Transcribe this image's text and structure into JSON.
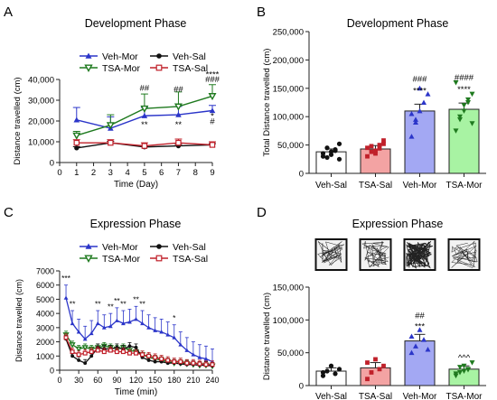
{
  "panels": [
    {
      "letter": "A",
      "title": "Development Phase"
    },
    {
      "letter": "B",
      "title": "Development Phase"
    },
    {
      "letter": "C",
      "title": "Expression Phase"
    },
    {
      "letter": "D",
      "title": "Expression Phase"
    }
  ],
  "colors": {
    "veh_mor": "#2b35c9",
    "tsa_mor": "#1f7a1f",
    "veh_sal": "#111111",
    "tsa_sal": "#c0202a",
    "bar_veh_sal": "#ffffff",
    "bar_tsa_sal": "#f3a3a3",
    "bar_veh_mor": "#a3a8f3",
    "bar_tsa_mor": "#a8f3a3"
  },
  "chart_data": [
    {
      "type": "line",
      "title": "Development Phase",
      "xlabel": "Time (Day)",
      "ylabel": "Distance travelled (cm)",
      "x": [
        1,
        3,
        5,
        7,
        9
      ],
      "xlim": [
        0,
        9
      ],
      "ylim": [
        0,
        40000
      ],
      "xticks": [
        "0",
        "1",
        "2",
        "3",
        "4",
        "5",
        "6",
        "7",
        "8",
        "9"
      ],
      "yticks": [
        "0",
        "10,000",
        "20,000",
        "30,000",
        "40,000"
      ],
      "legend": [
        "Veh-Mor",
        "TSA-Mor",
        "Veh-Sal",
        "TSA-Sal"
      ],
      "legend_position": "top",
      "series": [
        {
          "name": "Veh-Mor",
          "values": [
            20500,
            16500,
            22500,
            23000,
            25000
          ],
          "err": [
            6000,
            5500,
            4000,
            4000,
            2500
          ]
        },
        {
          "name": "TSA-Mor",
          "values": [
            13000,
            18000,
            26000,
            27000,
            32000
          ],
          "err": [
            2000,
            5000,
            7000,
            7000,
            5500
          ]
        },
        {
          "name": "Veh-Sal",
          "values": [
            7000,
            9500,
            7500,
            8000,
            8500
          ],
          "err": [
            600,
            700,
            500,
            700,
            600
          ]
        },
        {
          "name": "TSA-Sal",
          "values": [
            9500,
            9500,
            8000,
            9500,
            8500
          ],
          "err": [
            1500,
            1500,
            1500,
            1800,
            1500
          ]
        }
      ],
      "annotations": [
        {
          "x": 5,
          "text": "##"
        },
        {
          "x": 5,
          "text": "**"
        },
        {
          "x": 7,
          "text": "##"
        },
        {
          "x": 7,
          "text": "**"
        },
        {
          "x": 9,
          "text": "****"
        },
        {
          "x": 9,
          "text": "###"
        },
        {
          "x": 9,
          "text": "*"
        },
        {
          "x": 9,
          "text": "#"
        }
      ]
    },
    {
      "type": "bar",
      "title": "Development Phase",
      "xlabel": "",
      "ylabel": "Total Distance travelled (cm)",
      "categories": [
        "Veh-Sal",
        "TSA-Sal",
        "Veh-Mor",
        "TSA-Mor"
      ],
      "values": [
        38000,
        43000,
        110000,
        113000
      ],
      "err": [
        5000,
        6000,
        12000,
        11000
      ],
      "ylim": [
        0,
        250000
      ],
      "yticks": [
        "0",
        "50,000",
        "100,000",
        "150,000",
        "200,000",
        "250,000"
      ],
      "annotations": [
        {
          "category": "Veh-Mor",
          "lines": [
            "###",
            "****"
          ]
        },
        {
          "category": "TSA-Mor",
          "lines": [
            "####",
            "****"
          ]
        }
      ],
      "points": [
        [
          30000,
          45000,
          38000,
          40000,
          52000,
          35000,
          28000,
          33000,
          42000,
          25000
        ],
        [
          30000,
          48000,
          40000,
          50000,
          58000,
          45000,
          38000,
          35000,
          44000,
          52000
        ],
        [
          65000,
          90000,
          110000,
          125000,
          140000,
          105000,
          95000,
          150000
        ],
        [
          75000,
          95000,
          110000,
          125000,
          140000,
          160000,
          100000,
          120000,
          130000,
          88000
        ]
      ]
    },
    {
      "type": "line",
      "title": "Expression Phase",
      "xlabel": "Time (min)",
      "ylabel": "Distance travelled (cm)",
      "x": [
        10,
        20,
        30,
        40,
        50,
        60,
        70,
        80,
        90,
        100,
        110,
        120,
        130,
        140,
        150,
        160,
        170,
        180,
        190,
        200,
        210,
        220,
        230,
        240
      ],
      "xlim": [
        0,
        240
      ],
      "ylim": [
        0,
        7000
      ],
      "xticks": [
        "0",
        "30",
        "60",
        "90",
        "120",
        "150",
        "180",
        "210",
        "240"
      ],
      "yticks": [
        "0",
        "1000",
        "2000",
        "3000",
        "4000",
        "5000",
        "6000",
        "7000"
      ],
      "legend": [
        "Veh-Mor",
        "TSA-Mor",
        "Veh-Sal",
        "TSA-Sal"
      ],
      "legend_position": "top",
      "series": [
        {
          "name": "Veh-Mor",
          "values": [
            5100,
            3300,
            2700,
            2200,
            2600,
            3300,
            3000,
            3100,
            3500,
            3300,
            3400,
            3600,
            3300,
            3000,
            2800,
            2700,
            2500,
            2300,
            1800,
            1400,
            1100,
            900,
            800,
            600
          ]
        },
        {
          "name": "TSA-Mor",
          "values": [
            2500,
            1800,
            1500,
            1600,
            1500,
            1600,
            1700,
            1600,
            1500,
            1600,
            1400,
            1300,
            1100,
            900,
            800,
            700,
            600,
            500,
            500,
            450,
            400,
            350,
            350,
            300
          ]
        },
        {
          "name": "Veh-Sal",
          "values": [
            2200,
            1000,
            700,
            500,
            1000,
            1600,
            1500,
            1500,
            1600,
            1500,
            1700,
            1600,
            900,
            700,
            600,
            600,
            500,
            500,
            450,
            400,
            400,
            350,
            350,
            300
          ]
        },
        {
          "name": "TSA-Sal",
          "values": [
            2300,
            1300,
            1100,
            1200,
            1300,
            1400,
            1300,
            1400,
            1300,
            1300,
            1200,
            1200,
            1100,
            1000,
            900,
            800,
            700,
            600,
            600,
            500,
            500,
            450,
            400,
            400
          ]
        }
      ],
      "annotations": [
        "***",
        "**",
        "**",
        "**",
        "**",
        "**",
        "**",
        "**",
        "*"
      ]
    },
    {
      "type": "bar",
      "title": "Expression Phase",
      "xlabel": "",
      "ylabel": "Distance travelled (cm)",
      "categories": [
        "Veh-Sal",
        "TSA-Sal",
        "Veh-Mor",
        "TSA-Mor"
      ],
      "values": [
        22000,
        27000,
        68000,
        25000
      ],
      "err": [
        5000,
        8000,
        10000,
        5000
      ],
      "ylim": [
        0,
        150000
      ],
      "yticks": [
        "0",
        "50,000",
        "100,000",
        "150,000"
      ],
      "annotations": [
        {
          "category": "Veh-Mor",
          "lines": [
            "##",
            "***"
          ]
        },
        {
          "category": "TSA-Mor",
          "lines": [
            "^^^"
          ]
        }
      ],
      "points": [
        [
          15000,
          22000,
          30000,
          18000,
          25000,
          20000
        ],
        [
          10000,
          20000,
          40000,
          25000,
          30000,
          35000
        ],
        [
          50000,
          60000,
          85000,
          70000,
          55000,
          75000
        ],
        [
          15000,
          20000,
          30000,
          25000,
          35000,
          18000,
          28000,
          22000,
          24000
        ]
      ],
      "track_images": [
        "Veh-Sal",
        "TSA-Sal",
        "Veh-Mor",
        "TSA-Mor"
      ]
    }
  ]
}
